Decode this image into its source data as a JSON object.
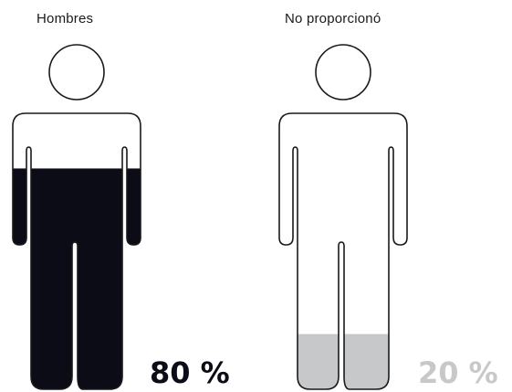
{
  "chart_data": {
    "type": "pictogram",
    "title": "",
    "categories": [
      "Hombres",
      "No proporcionó"
    ],
    "values": [
      80,
      20
    ],
    "value_labels": [
      "80 %",
      "20 %"
    ],
    "unit": "%",
    "fill_colors": [
      "#0b0c16",
      "#c7c8ca"
    ],
    "label_colors": [
      "#0b0c16",
      "#c7c8ca"
    ],
    "outline_color": "#1a1a1a",
    "icon": "person-icon"
  }
}
